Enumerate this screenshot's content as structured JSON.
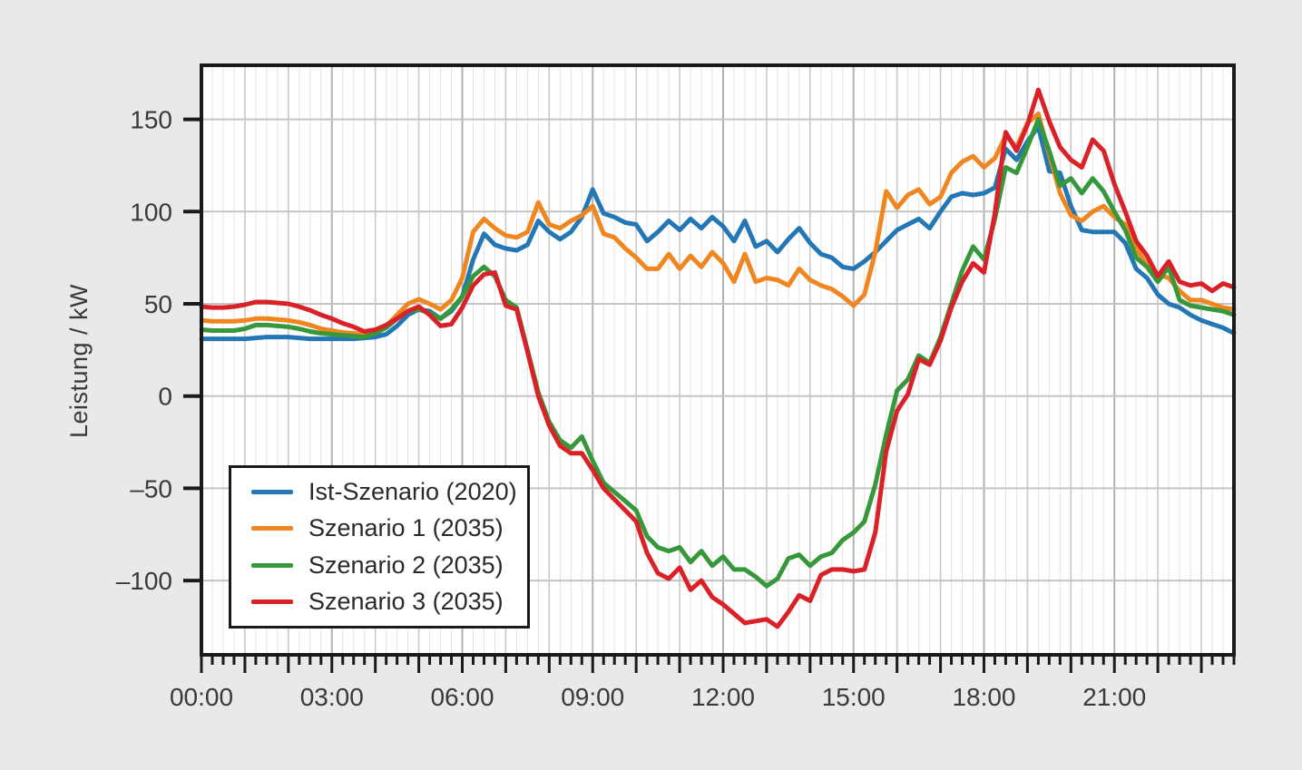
{
  "figure": {
    "title": "",
    "colors": {
      "background": "#e9e9e9",
      "plot_background": "#ffffff",
      "border": "#1a1a1a",
      "grid_minor": "#e3e3e3",
      "grid_hour": "#c8c8c8",
      "grid_3hour": "#b2b2b2",
      "grid_horizontal": "#c4c4c4",
      "text": "#3a3a3a"
    }
  },
  "chart_data": {
    "type": "line",
    "title": "",
    "xlabel": "",
    "ylabel": "Leistung / kW",
    "x_start_hour": 0,
    "x_step_hours": 0.25,
    "n_points": 96,
    "x_end_hour": 23.75,
    "x_label_every_hours": 3,
    "x_tick_labels": [
      "00:00",
      "03:00",
      "06:00",
      "09:00",
      "12:00",
      "15:00",
      "18:00",
      "21:00"
    ],
    "x_tick_label_hours": [
      0,
      3,
      6,
      9,
      12,
      15,
      18,
      21
    ],
    "y_tick_values": [
      -100,
      -50,
      0,
      50,
      100,
      150
    ],
    "y_tick_labels": [
      "–100",
      "–50",
      "0",
      "50",
      "100",
      "150"
    ],
    "y_range": [
      -140.3,
      179.3
    ],
    "grid": "on",
    "legend_position": "lower-left-inside",
    "series": [
      {
        "name": "Ist-Szenario (2020)",
        "color": "#2377b4",
        "values": [
          31,
          31,
          31,
          31,
          31,
          31.5,
          32,
          32,
          32,
          31.5,
          31,
          31,
          31,
          31,
          31,
          31.5,
          32,
          33.5,
          38,
          44,
          47,
          46,
          42,
          46,
          54,
          74,
          88,
          82,
          80,
          79,
          82,
          95,
          89,
          85,
          89,
          97,
          112,
          99,
          97,
          94,
          93,
          84,
          89,
          95,
          90,
          96,
          91,
          97,
          92,
          84,
          95,
          81,
          84,
          78,
          85,
          91,
          83,
          77,
          75,
          70,
          69,
          73,
          78,
          84,
          90,
          93,
          96,
          91,
          100,
          108,
          110,
          109,
          110,
          113,
          134,
          128,
          138,
          146,
          122,
          121,
          103,
          90,
          89,
          89,
          89,
          83,
          69,
          64,
          55,
          50,
          48,
          44,
          41,
          39,
          37,
          34
        ]
      },
      {
        "name": "Szenario 1 (2035)",
        "color": "#f0861f",
        "values": [
          41,
          40.5,
          40.5,
          40.5,
          41,
          42,
          42,
          41.5,
          41,
          40,
          38.5,
          36.5,
          35.5,
          34.5,
          34,
          33.5,
          35,
          38,
          44,
          50,
          52.5,
          50,
          47,
          52,
          64,
          89,
          96,
          91,
          87,
          86,
          89,
          105,
          93,
          91,
          95,
          98,
          103,
          88,
          86,
          80,
          75,
          69,
          69,
          77,
          69,
          76,
          70,
          78,
          72,
          62,
          77,
          62,
          64,
          63,
          60,
          69,
          63,
          60,
          58,
          54,
          49,
          55,
          78,
          111,
          102,
          109,
          112,
          104,
          108,
          121,
          127,
          130,
          124,
          129,
          141,
          135,
          148,
          153,
          131,
          110,
          98,
          95,
          100,
          103,
          97,
          93,
          80,
          71,
          66,
          64,
          57,
          52,
          52,
          50,
          48,
          47
        ]
      },
      {
        "name": "Szenario 2 (2035)",
        "color": "#36983a",
        "values": [
          36,
          35.5,
          35.5,
          35.5,
          36.5,
          38.5,
          38.5,
          38,
          37.5,
          36.5,
          35,
          34,
          33.5,
          33,
          32.5,
          32,
          34,
          37,
          42,
          46,
          47,
          45,
          42,
          47,
          54,
          65,
          70,
          65,
          52,
          48,
          25,
          2,
          -14,
          -24,
          -28,
          -22,
          -35,
          -47,
          -52,
          -57,
          -62,
          -76,
          -82,
          -84,
          -82,
          -90,
          -84,
          -92,
          -87,
          -94,
          -94,
          -98,
          -103,
          -99,
          -88,
          -86,
          -92,
          -87,
          -85,
          -78,
          -74,
          -68,
          -48,
          -21,
          3,
          9,
          22,
          18,
          32,
          50,
          68,
          81,
          74,
          96,
          124,
          121,
          135,
          150,
          133,
          114,
          118,
          110,
          118,
          111,
          100,
          90,
          75,
          70,
          62,
          70,
          52,
          49,
          48,
          47,
          46,
          44
        ]
      },
      {
        "name": "Szenario 3 (2035)",
        "color": "#da2128",
        "values": [
          48.5,
          48,
          48,
          48.5,
          49.5,
          51,
          51,
          50.5,
          50,
          48.5,
          46.5,
          44,
          42,
          39.5,
          37.5,
          35,
          36,
          38.5,
          42,
          46,
          48.5,
          44,
          38,
          39,
          48,
          60,
          66,
          67,
          49,
          47,
          24,
          0,
          -16,
          -27,
          -31,
          -31,
          -40,
          -50,
          -56,
          -62,
          -68,
          -85,
          -96,
          -99,
          -93,
          -105,
          -100,
          -109,
          -113,
          -118,
          -123,
          -122,
          -121,
          -125,
          -117,
          -108,
          -111,
          -97,
          -94,
          -94,
          -95,
          -94,
          -74,
          -30,
          -8,
          1,
          20,
          17,
          30,
          48,
          62,
          72,
          67,
          99,
          143,
          133,
          147,
          166,
          149,
          135,
          128,
          124,
          139,
          133,
          115,
          100,
          84,
          76,
          65,
          73,
          62,
          60,
          61,
          57,
          61,
          59
        ]
      }
    ]
  }
}
